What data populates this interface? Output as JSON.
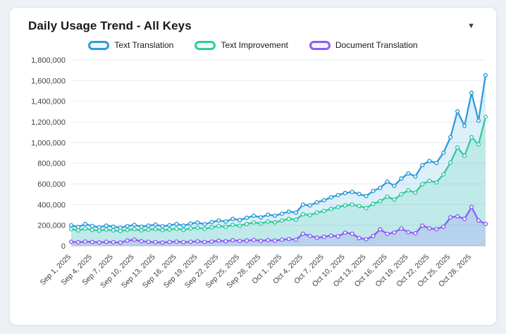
{
  "page": {
    "title": "Daily Usage Trend - All Keys",
    "collapse_icon": "▼"
  },
  "chart_data": {
    "type": "line",
    "title": "Daily Usage Trend - All Keys",
    "grid": true,
    "legend_position": "top",
    "ylim": [
      0,
      1800000
    ],
    "ytick_step": 200000,
    "tick_every": 3,
    "x": [
      "Sep 1, 2025",
      "Sep 2, 2025",
      "Sep 3, 2025",
      "Sep 4, 2025",
      "Sep 5, 2025",
      "Sep 6, 2025",
      "Sep 7, 2025",
      "Sep 8, 2025",
      "Sep 9, 2025",
      "Sep 10, 2025",
      "Sep 11, 2025",
      "Sep 12, 2025",
      "Sep 13, 2025",
      "Sep 14, 2025",
      "Sep 15, 2025",
      "Sep 16, 2025",
      "Sep 17, 2025",
      "Sep 18, 2025",
      "Sep 19, 2025",
      "Sep 20, 2025",
      "Sep 21, 2025",
      "Sep 22, 2025",
      "Sep 23, 2025",
      "Sep 24, 2025",
      "Sep 25, 2025",
      "Sep 26, 2025",
      "Sep 27, 2025",
      "Sep 28, 2025",
      "Sep 29, 2025",
      "Sep 30, 2025",
      "Oct 1, 2025",
      "Oct 2, 2025",
      "Oct 3, 2025",
      "Oct 4, 2025",
      "Oct 5, 2025",
      "Oct 6, 2025",
      "Oct 7, 2025",
      "Oct 8, 2025",
      "Oct 9, 2025",
      "Oct 10, 2025",
      "Oct 11, 2025",
      "Oct 12, 2025",
      "Oct 13, 2025",
      "Oct 14, 2025",
      "Oct 15, 2025",
      "Oct 16, 2025",
      "Oct 17, 2025",
      "Oct 18, 2025",
      "Oct 19, 2025",
      "Oct 20, 2025",
      "Oct 21, 2025",
      "Oct 22, 2025",
      "Oct 23, 2025",
      "Oct 24, 2025",
      "Oct 25, 2025",
      "Oct 26, 2025",
      "Oct 27, 2025",
      "Oct 28, 2025",
      "Oct 29, 2025",
      "Oct 30, 2025"
    ],
    "series": [
      {
        "name": "Text Translation",
        "color": "#2d9cdb",
        "values": [
          200000,
          183000,
          212000,
          193000,
          180000,
          196000,
          186000,
          176000,
          192000,
          203000,
          186000,
          196000,
          206000,
          190000,
          200000,
          212000,
          196000,
          216000,
          226000,
          210000,
          230000,
          246000,
          236000,
          262000,
          250000,
          272000,
          292000,
          276000,
          302000,
          292000,
          312000,
          332000,
          322000,
          400000,
          392000,
          422000,
          442000,
          470000,
          492000,
          512000,
          522000,
          502000,
          482000,
          532000,
          562000,
          622000,
          582000,
          652000,
          702000,
          672000,
          782000,
          822000,
          802000,
          902000,
          1052000,
          1302000,
          1162000,
          1482000,
          1212000,
          1652000
        ]
      },
      {
        "name": "Text Improvement",
        "color": "#2ecc9a",
        "values": [
          162000,
          150000,
          168000,
          155000,
          148000,
          158000,
          150000,
          144000,
          154000,
          162000,
          150000,
          157000,
          163000,
          152000,
          159000,
          167000,
          155000,
          170000,
          177000,
          165000,
          180000,
          192000,
          185000,
          204000,
          196000,
          212000,
          227000,
          216000,
          236000,
          228000,
          246000,
          262000,
          254000,
          306000,
          298000,
          322000,
          338000,
          358000,
          376000,
          392000,
          400000,
          386000,
          366000,
          408000,
          432000,
          476000,
          448000,
          500000,
          538000,
          516000,
          598000,
          630000,
          614000,
          692000,
          806000,
          952000,
          872000,
          1052000,
          982000,
          1248000
        ]
      },
      {
        "name": "Document Translation",
        "color": "#8b5cf6",
        "values": [
          40000,
          35000,
          42000,
          38000,
          34000,
          40000,
          36000,
          33000,
          52000,
          60000,
          45000,
          40000,
          36000,
          33000,
          38000,
          42000,
          36000,
          40000,
          44000,
          38000,
          42000,
          50000,
          45000,
          55000,
          48000,
          52000,
          58000,
          50000,
          56000,
          52000,
          60000,
          66000,
          60000,
          118000,
          96000,
          80000,
          88000,
          100000,
          92000,
          128000,
          118000,
          76000,
          64000,
          96000,
          160000,
          116000,
          130000,
          168000,
          132000,
          122000,
          196000,
          170000,
          162000,
          186000,
          276000,
          286000,
          262000,
          376000,
          246000,
          212000
        ]
      }
    ]
  }
}
